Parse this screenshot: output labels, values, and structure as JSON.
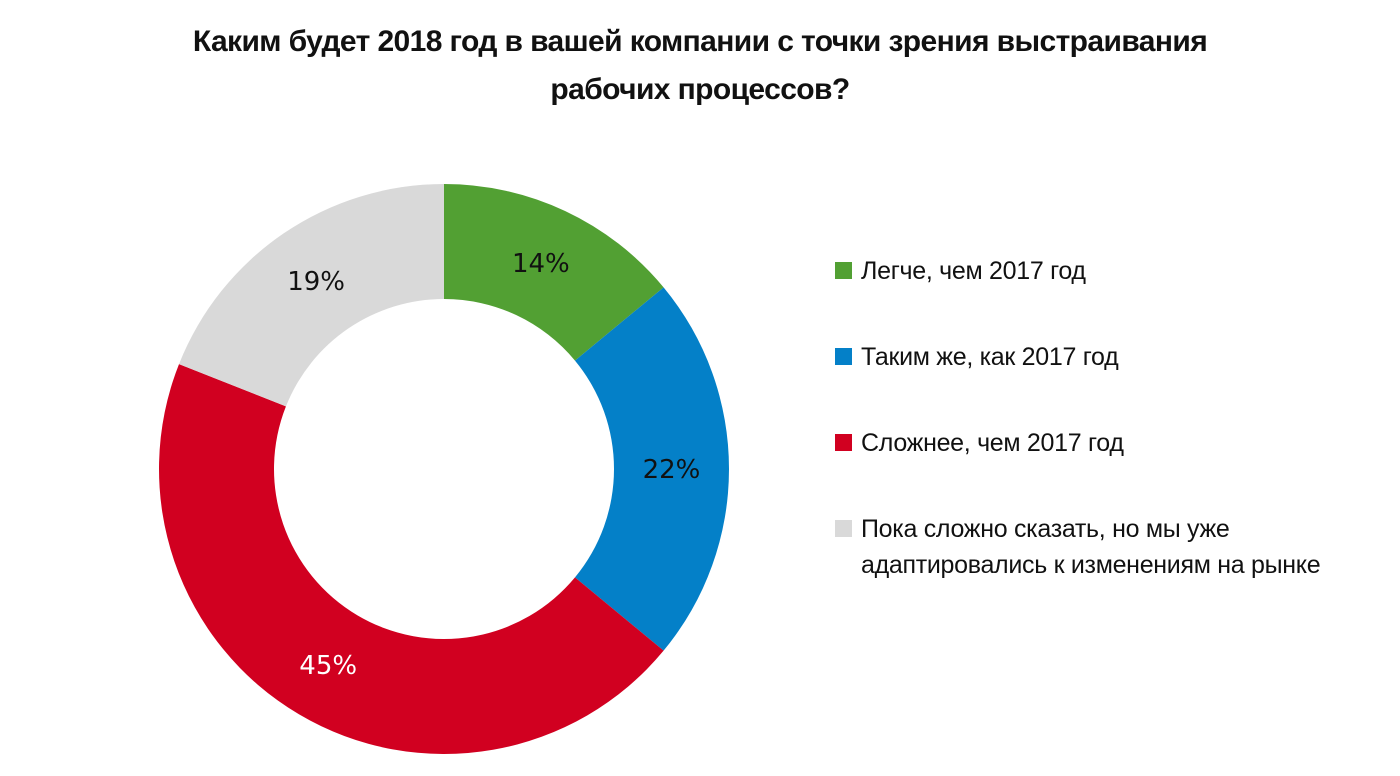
{
  "title": {
    "line1": "Каким будет 2018 год в вашей компании с точки зрения выстраивания",
    "line2": "рабочих процессов?"
  },
  "chart_data": {
    "type": "pie",
    "variant": "donut",
    "title": "Каким будет 2018 год в вашей компании с точки зрения выстраивания рабочих процессов?",
    "categories": [
      "Легче, чем 2017 год",
      "Таким же, как 2017 год",
      "Сложнее, чем 2017 год",
      "Пока сложно сказать, но мы уже адаптировались к изменениям на рынке"
    ],
    "values": [
      14,
      22,
      45,
      19
    ],
    "unit": "%",
    "labels": [
      "14%",
      "22%",
      "45%",
      "19%"
    ],
    "colors": [
      "#52a033",
      "#0480c8",
      "#d10020",
      "#d9d9d9"
    ],
    "label_colors": [
      "#111111",
      "#111111",
      "#ffffff",
      "#111111"
    ],
    "start_angle": "12 o'clock, clockwise",
    "legend_position": "right"
  },
  "legend": {
    "items": [
      {
        "lines": [
          "Легче, чем 2017 год"
        ],
        "color": "#52a033"
      },
      {
        "lines": [
          "Таким же, как 2017 год"
        ],
        "color": "#0480c8"
      },
      {
        "lines": [
          "Сложнее, чем 2017 год"
        ],
        "color": "#d10020"
      },
      {
        "lines": [
          "Пока сложно сказать, но мы уже",
          "адаптировались к изменениям на рынке"
        ],
        "color": "#d9d9d9"
      }
    ]
  }
}
